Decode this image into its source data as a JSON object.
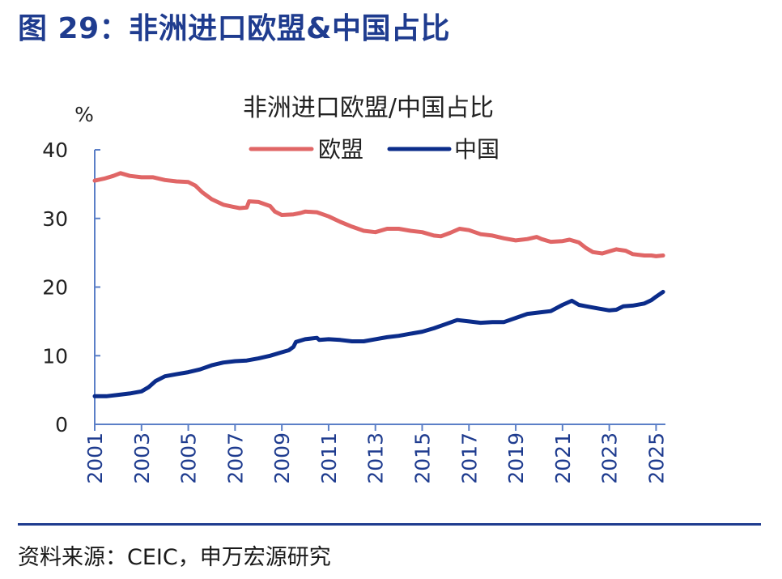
{
  "figure": {
    "title": "图 29：非洲进口欧盟&中国占比",
    "source": "资料来源：CEIC，申万宏源研究"
  },
  "colors": {
    "title": "#1f3c8f",
    "eu": "#e06666",
    "china": "#0b2c8a",
    "axis": "#5b7fc7",
    "rule": "#1f3c8f"
  },
  "chart_data": {
    "type": "line",
    "title": "非洲进口欧盟/中国占比",
    "ylabel": "%",
    "xlabel": "",
    "ylim": [
      0,
      40
    ],
    "yticks": [
      0,
      10,
      20,
      30,
      40
    ],
    "xlim": [
      2001,
      2025.4
    ],
    "xticks": [
      "2001",
      "2003",
      "2005",
      "2007",
      "2009",
      "2011",
      "2013",
      "2015",
      "2017",
      "2019",
      "2021",
      "2023",
      "2025"
    ],
    "grid": false,
    "legend_position": "top-center",
    "series": [
      {
        "name": "欧盟",
        "color": "#e06666",
        "points": [
          [
            2001.0,
            35.5
          ],
          [
            2001.4,
            35.8
          ],
          [
            2001.8,
            36.2
          ],
          [
            2002.1,
            36.6
          ],
          [
            2002.5,
            36.2
          ],
          [
            2003.0,
            36.0
          ],
          [
            2003.5,
            36.0
          ],
          [
            2004.0,
            35.6
          ],
          [
            2004.5,
            35.4
          ],
          [
            2005.0,
            35.3
          ],
          [
            2005.3,
            34.8
          ],
          [
            2005.6,
            33.8
          ],
          [
            2006.0,
            32.8
          ],
          [
            2006.5,
            32.0
          ],
          [
            2006.9,
            31.7
          ],
          [
            2007.2,
            31.5
          ],
          [
            2007.5,
            31.6
          ],
          [
            2007.6,
            32.5
          ],
          [
            2008.0,
            32.4
          ],
          [
            2008.5,
            31.8
          ],
          [
            2008.7,
            31.0
          ],
          [
            2009.0,
            30.5
          ],
          [
            2009.5,
            30.6
          ],
          [
            2009.8,
            30.8
          ],
          [
            2010.0,
            31.0
          ],
          [
            2010.5,
            30.9
          ],
          [
            2011.0,
            30.3
          ],
          [
            2011.5,
            29.5
          ],
          [
            2012.0,
            28.8
          ],
          [
            2012.5,
            28.2
          ],
          [
            2013.0,
            28.0
          ],
          [
            2013.5,
            28.5
          ],
          [
            2014.0,
            28.5
          ],
          [
            2014.5,
            28.2
          ],
          [
            2015.0,
            28.0
          ],
          [
            2015.5,
            27.5
          ],
          [
            2015.8,
            27.4
          ],
          [
            2016.2,
            27.9
          ],
          [
            2016.6,
            28.5
          ],
          [
            2017.0,
            28.3
          ],
          [
            2017.5,
            27.7
          ],
          [
            2018.0,
            27.5
          ],
          [
            2018.5,
            27.1
          ],
          [
            2019.0,
            26.8
          ],
          [
            2019.5,
            27.0
          ],
          [
            2019.9,
            27.3
          ],
          [
            2020.1,
            27.0
          ],
          [
            2020.5,
            26.6
          ],
          [
            2021.0,
            26.7
          ],
          [
            2021.3,
            26.9
          ],
          [
            2021.7,
            26.5
          ],
          [
            2022.0,
            25.7
          ],
          [
            2022.3,
            25.1
          ],
          [
            2022.7,
            24.9
          ],
          [
            2023.0,
            25.2
          ],
          [
            2023.3,
            25.5
          ],
          [
            2023.7,
            25.3
          ],
          [
            2024.0,
            24.8
          ],
          [
            2024.5,
            24.6
          ],
          [
            2024.8,
            24.6
          ],
          [
            2025.0,
            24.5
          ],
          [
            2025.3,
            24.6
          ]
        ]
      },
      {
        "name": "中国",
        "color": "#0b2c8a",
        "points": [
          [
            2001.0,
            4.1
          ],
          [
            2001.5,
            4.1
          ],
          [
            2002.0,
            4.3
          ],
          [
            2002.5,
            4.5
          ],
          [
            2003.0,
            4.8
          ],
          [
            2003.3,
            5.4
          ],
          [
            2003.6,
            6.3
          ],
          [
            2004.0,
            7.0
          ],
          [
            2004.5,
            7.3
          ],
          [
            2005.0,
            7.6
          ],
          [
            2005.5,
            8.0
          ],
          [
            2006.0,
            8.6
          ],
          [
            2006.5,
            9.0
          ],
          [
            2007.0,
            9.2
          ],
          [
            2007.5,
            9.3
          ],
          [
            2008.0,
            9.6
          ],
          [
            2008.5,
            10.0
          ],
          [
            2009.0,
            10.5
          ],
          [
            2009.3,
            10.8
          ],
          [
            2009.5,
            11.3
          ],
          [
            2009.6,
            12.0
          ],
          [
            2010.0,
            12.4
          ],
          [
            2010.5,
            12.6
          ],
          [
            2010.6,
            12.3
          ],
          [
            2011.0,
            12.4
          ],
          [
            2011.5,
            12.3
          ],
          [
            2012.0,
            12.1
          ],
          [
            2012.5,
            12.1
          ],
          [
            2013.0,
            12.4
          ],
          [
            2013.5,
            12.7
          ],
          [
            2014.0,
            12.9
          ],
          [
            2014.5,
            13.2
          ],
          [
            2015.0,
            13.5
          ],
          [
            2015.5,
            14.0
          ],
          [
            2016.0,
            14.6
          ],
          [
            2016.5,
            15.2
          ],
          [
            2017.0,
            15.0
          ],
          [
            2017.5,
            14.8
          ],
          [
            2018.0,
            14.9
          ],
          [
            2018.5,
            14.9
          ],
          [
            2019.0,
            15.5
          ],
          [
            2019.5,
            16.1
          ],
          [
            2020.0,
            16.3
          ],
          [
            2020.5,
            16.5
          ],
          [
            2021.0,
            17.4
          ],
          [
            2021.4,
            18.0
          ],
          [
            2021.7,
            17.4
          ],
          [
            2022.0,
            17.2
          ],
          [
            2022.5,
            16.9
          ],
          [
            2023.0,
            16.6
          ],
          [
            2023.3,
            16.7
          ],
          [
            2023.6,
            17.2
          ],
          [
            2024.0,
            17.3
          ],
          [
            2024.5,
            17.6
          ],
          [
            2024.8,
            18.1
          ],
          [
            2025.0,
            18.6
          ],
          [
            2025.3,
            19.3
          ]
        ]
      }
    ]
  }
}
